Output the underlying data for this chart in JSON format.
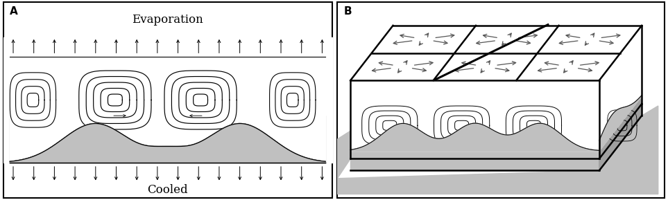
{
  "fig_width": 9.63,
  "fig_height": 2.89,
  "dpi": 100,
  "bg_color": "#ffffff",
  "panel_A_label": "A",
  "panel_B_label": "B",
  "evaporation_text": "Evaporation",
  "cooled_text": "Cooled",
  "gray_color": "#c0c0c0",
  "dark_gray": "#a0a0a0",
  "line_color": "#000000"
}
